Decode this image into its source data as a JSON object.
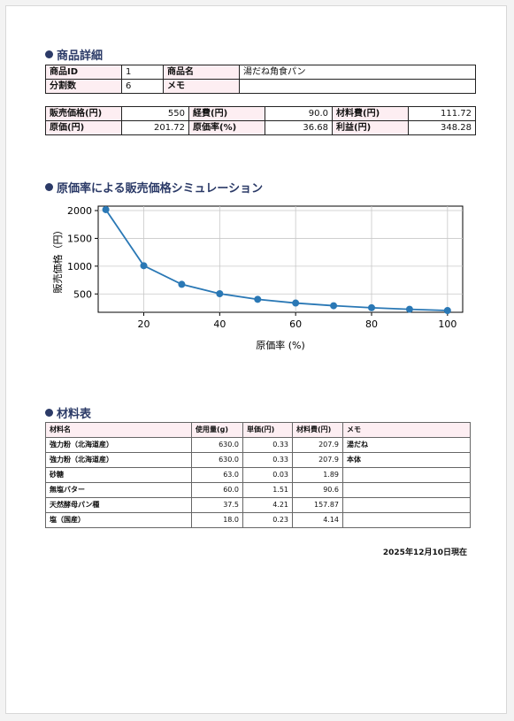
{
  "product_section": {
    "title": "商品詳細",
    "row1": [
      {
        "label": "商品ID",
        "value": "1"
      },
      {
        "label": "商品名",
        "value": "湯だね角食パン"
      }
    ],
    "row2": [
      {
        "label": "分割数",
        "value": "6"
      },
      {
        "label": "メモ",
        "value": ""
      }
    ]
  },
  "cost_section": {
    "row1": [
      {
        "label": "販売価格(円)",
        "value": "550"
      },
      {
        "label": "経費(円)",
        "value": "90.0"
      },
      {
        "label": "材料費(円)",
        "value": "111.72"
      }
    ],
    "row2": [
      {
        "label": "原価(円)",
        "value": "201.72"
      },
      {
        "label": "原価率(%)",
        "value": "36.68"
      },
      {
        "label": "利益(円)",
        "value": "348.28"
      }
    ]
  },
  "chart_section": {
    "title": "原価率による販売価格シミュレーション"
  },
  "chart_data": {
    "type": "line",
    "xlabel": "原価率 (%)",
    "ylabel": "販売価格（円）",
    "x": [
      10,
      20,
      30,
      40,
      50,
      60,
      70,
      80,
      90,
      100
    ],
    "y": [
      2017.2,
      1008.6,
      672.4,
      504.3,
      403.44,
      336.2,
      288.17,
      252.15,
      224.13,
      201.72
    ],
    "xticks": [
      20,
      40,
      60,
      80,
      100
    ],
    "yticks": [
      500,
      1000,
      1500,
      2000
    ],
    "xlim": [
      8,
      104
    ],
    "ylim": [
      170,
      2080
    ],
    "grid": true,
    "color": "#2a78b5"
  },
  "materials_section": {
    "title": "材料表",
    "headers": [
      "材料名",
      "使用量(g)",
      "単価(円)",
      "材料費(円)",
      "メモ"
    ],
    "rows": [
      [
        "強力粉（北海道産）",
        "630.0",
        "0.33",
        "207.9",
        "湯だね"
      ],
      [
        "強力粉（北海道産）",
        "630.0",
        "0.33",
        "207.9",
        "本体"
      ],
      [
        "砂糖",
        "63.0",
        "0.03",
        "1.89",
        ""
      ],
      [
        "無塩バター",
        "60.0",
        "1.51",
        "90.6",
        ""
      ],
      [
        "天然酵母パン種",
        "37.5",
        "4.21",
        "157.87",
        ""
      ],
      [
        "塩（国産）",
        "18.0",
        "0.23",
        "4.14",
        ""
      ]
    ]
  },
  "date_text": "2025年12月10日現在",
  "colors": {
    "title": "#2b3a67",
    "label_bg": "#fdeef2",
    "line": "#2a78b5"
  }
}
